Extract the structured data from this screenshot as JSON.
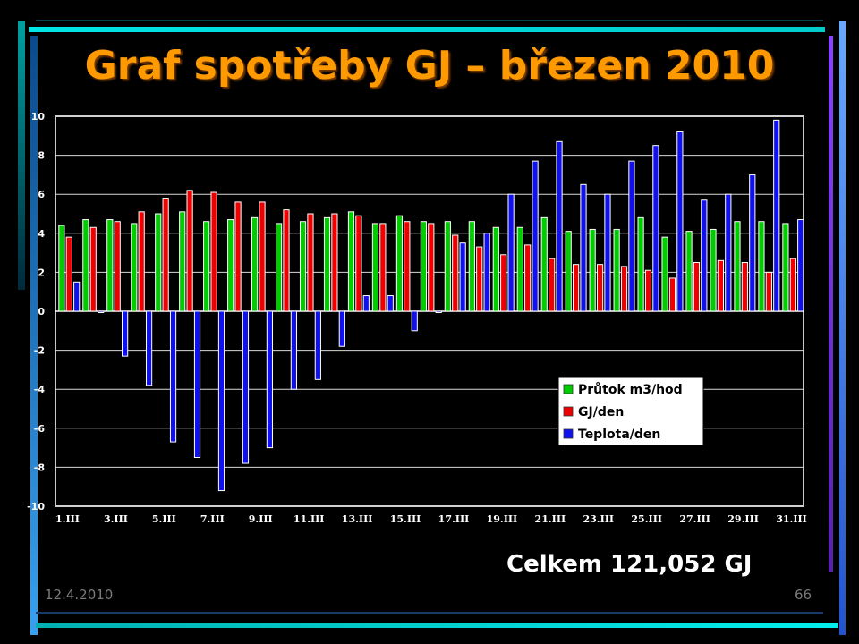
{
  "slide": {
    "title": "Graf spotřeby GJ – březen 2010",
    "total": "Celkem 121,052 GJ",
    "date": "12.4.2010",
    "page_number": "66"
  },
  "colors": {
    "title": "#ff9900",
    "background": "#000000",
    "plot_border": "#c0c0c0",
    "frame_cyan": "#00cccc",
    "frame_blue": "#3366ff",
    "frame_purple": "#8833ff"
  },
  "chart_data": {
    "type": "bar",
    "title": "",
    "xlabel": "",
    "ylabel": "",
    "ylim": [
      -10,
      10
    ],
    "yticks": [
      10,
      8,
      6,
      4,
      2,
      0,
      -2,
      -4,
      -6,
      -8,
      -10
    ],
    "grid": true,
    "legend_position": "inside-right",
    "categories": [
      "1.III",
      "2.III",
      "3.III",
      "4.III",
      "5.III",
      "6.III",
      "7.III",
      "8.III",
      "9.III",
      "10.III",
      "11.III",
      "12.III",
      "13.III",
      "14.III",
      "15.III",
      "16.III",
      "17.III",
      "18.III",
      "19.III",
      "20.III",
      "21.III",
      "22.III",
      "23.III",
      "24.III",
      "25.III",
      "26.III",
      "27.III",
      "28.III",
      "29.III",
      "30.III",
      "31.III"
    ],
    "tick_labels": [
      "1.III",
      "",
      "3.III",
      "",
      "5.III",
      "",
      "7.III",
      "",
      "9.III",
      "",
      "11.III",
      "",
      "13.III",
      "",
      "15.III",
      "",
      "17.III",
      "",
      "19.III",
      "",
      "21.III",
      "",
      "23.III",
      "",
      "25.III",
      "",
      "27.III",
      "",
      "29.III",
      "",
      "31.III"
    ],
    "series": [
      {
        "name": "Průtok m3/hod",
        "color": "#00cc00",
        "values": [
          4.4,
          4.7,
          4.7,
          4.5,
          5.0,
          5.1,
          4.6,
          4.7,
          4.8,
          4.5,
          4.6,
          4.8,
          5.1,
          4.5,
          4.9,
          4.6,
          4.6,
          4.6,
          4.3,
          4.3,
          4.8,
          4.1,
          4.2,
          4.2,
          4.8,
          3.8,
          4.1,
          4.2,
          4.6,
          4.6,
          4.5
        ]
      },
      {
        "name": "GJ/den",
        "color": "#ee0000",
        "values": [
          3.8,
          4.3,
          4.6,
          5.1,
          5.8,
          6.2,
          6.1,
          5.6,
          5.6,
          5.2,
          5.0,
          5.0,
          4.9,
          4.5,
          4.6,
          4.5,
          3.9,
          3.3,
          2.9,
          3.4,
          2.7,
          2.4,
          2.4,
          2.3,
          2.1,
          1.7,
          2.5,
          2.6,
          2.5,
          2.0,
          2.7
        ]
      },
      {
        "name": "Teplota/den",
        "color": "#1111ee",
        "values": [
          1.5,
          0.0,
          -2.3,
          -3.8,
          -6.7,
          -7.5,
          -9.2,
          -7.8,
          -7.0,
          -4.0,
          -3.5,
          -1.8,
          0.8,
          0.8,
          -1.0,
          0.0,
          3.5,
          4.0,
          6.0,
          7.7,
          8.7,
          6.5,
          6.0,
          7.7,
          8.5,
          9.2,
          5.7,
          6.0,
          7.0,
          9.8,
          4.7
        ]
      }
    ]
  }
}
